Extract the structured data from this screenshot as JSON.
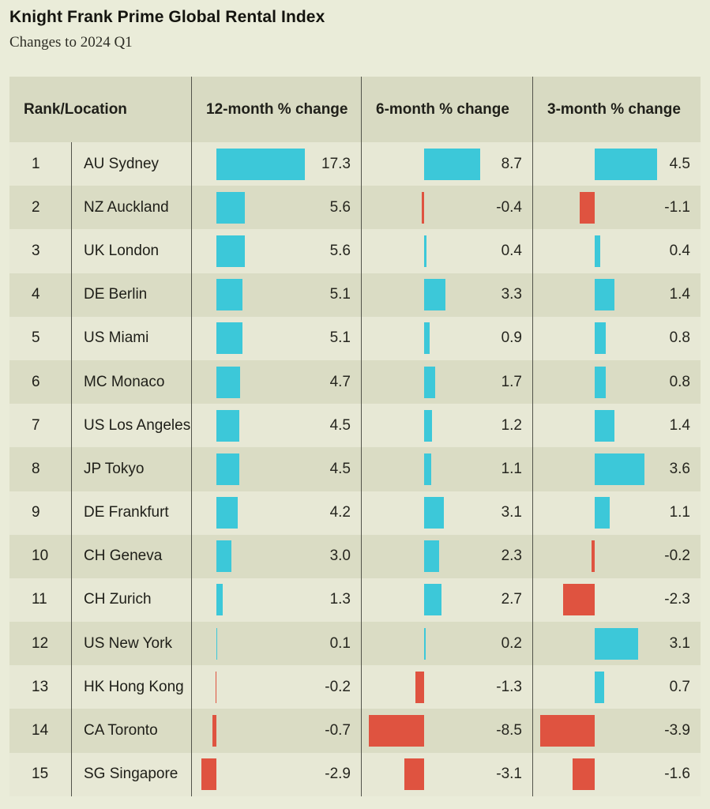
{
  "header": {
    "title": "Knight Frank Prime Global Rental Index",
    "subtitle": "Changes to 2024 Q1"
  },
  "table": {
    "colors": {
      "positive": "#3cc8d9",
      "negative": "#df5340",
      "row_light": "#e7e8d5",
      "row_dark": "#dadcc4",
      "header_bg": "#d8dac2",
      "divider": "#53544b"
    }
  },
  "chart_data": {
    "type": "bar",
    "title": "Knight Frank Prime Global Rental Index",
    "subtitle": "Changes to 2024 Q1",
    "columns": [
      "Rank/Location",
      "12-month % change",
      "6-month % change",
      "3-month % change"
    ],
    "legend": "none",
    "bar_color_positive": "#3cc8d9",
    "bar_color_negative": "#df5340",
    "rows": [
      {
        "rank": "1",
        "location": "AU Sydney",
        "m12": 17.3,
        "m6": 8.7,
        "m3": 4.5
      },
      {
        "rank": "2",
        "location": "NZ Auckland",
        "m12": 5.6,
        "m6": -0.4,
        "m3": -1.1
      },
      {
        "rank": "3",
        "location": "UK London",
        "m12": 5.6,
        "m6": 0.4,
        "m3": 0.4
      },
      {
        "rank": "4",
        "location": "DE Berlin",
        "m12": 5.1,
        "m6": 3.3,
        "m3": 1.4
      },
      {
        "rank": "5",
        "location": "US Miami",
        "m12": 5.1,
        "m6": 0.9,
        "m3": 0.8
      },
      {
        "rank": "6",
        "location": "MC Monaco",
        "m12": 4.7,
        "m6": 1.7,
        "m3": 0.8
      },
      {
        "rank": "7",
        "location": "US Los Angeles",
        "m12": 4.5,
        "m6": 1.2,
        "m3": 1.4
      },
      {
        "rank": "8",
        "location": "JP Tokyo",
        "m12": 4.5,
        "m6": 1.1,
        "m3": 3.6
      },
      {
        "rank": "9",
        "location": "DE Frankfurt",
        "m12": 4.2,
        "m6": 3.1,
        "m3": 1.1
      },
      {
        "rank": "10",
        "location": "CH Geneva",
        "m12": 3.0,
        "m6": 2.3,
        "m3": -0.2
      },
      {
        "rank": "11",
        "location": "CH Zurich",
        "m12": 1.3,
        "m6": 2.7,
        "m3": -2.3
      },
      {
        "rank": "12",
        "location": "US New York",
        "m12": 0.1,
        "m6": 0.2,
        "m3": 3.1
      },
      {
        "rank": "13",
        "location": "HK Hong Kong",
        "m12": -0.2,
        "m6": -1.3,
        "m3": 0.7
      },
      {
        "rank": "14",
        "location": "CA Toronto",
        "m12": -0.7,
        "m6": -8.5,
        "m3": -3.9
      },
      {
        "rank": "15",
        "location": "SG Singapore",
        "m12": -2.9,
        "m6": -3.1,
        "m3": -1.6
      }
    ]
  }
}
